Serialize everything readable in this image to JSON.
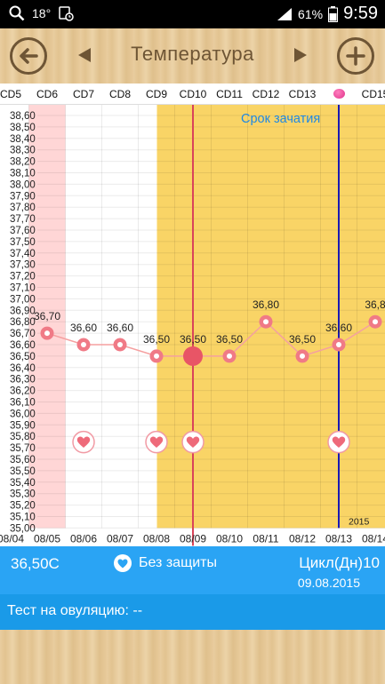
{
  "status_bar": {
    "left_temp": "18°",
    "battery": "61%",
    "time": "9:59"
  },
  "header": {
    "title": "Температура",
    "back_icon": "arrow-left-circle-icon",
    "prev_icon": "triangle-left-icon",
    "next_icon": "triangle-right-icon",
    "add_icon": "plus-circle-icon"
  },
  "cycle_days": [
    "CD5",
    "CD6",
    "CD7",
    "CD8",
    "CD9",
    "CD10",
    "CD11",
    "CD12",
    "CD13",
    "",
    "CD15"
  ],
  "chart_data": {
    "type": "line",
    "x": [
      "08/04",
      "08/05",
      "08/06",
      "08/07",
      "08/08",
      "08/09",
      "08/10",
      "08/11",
      "08/12",
      "08/13",
      "08/14"
    ],
    "series": [
      {
        "values": [
          null,
          36.7,
          36.6,
          36.6,
          36.5,
          36.5,
          36.5,
          36.8,
          36.5,
          36.6,
          36.8
        ],
        "point_labels": [
          "",
          "36,70",
          "36,60",
          "36,60",
          "36,50",
          "36,50",
          "36,50",
          "36,80",
          "36,50",
          "36,60",
          "36,8"
        ]
      }
    ],
    "ylim": [
      35.0,
      38.6
    ],
    "y_ticks": [
      "38,60",
      "38,50",
      "38,40",
      "38,30",
      "38,20",
      "38,10",
      "38,00",
      "37,90",
      "37,80",
      "37,70",
      "37,60",
      "37,50",
      "37,40",
      "37,30",
      "37,20",
      "37,10",
      "37,00",
      "36,90",
      "36,80",
      "36,70",
      "36,60",
      "36,50",
      "36,40",
      "36,30",
      "36,20",
      "36,10",
      "36,00",
      "35,90",
      "35,80",
      "35,70",
      "35,60",
      "35,50",
      "35,40",
      "35,30",
      "35,20",
      "35,10",
      "35,00"
    ],
    "heart_days": [
      "08/06",
      "08/08",
      "08/09",
      "08/13"
    ],
    "pink_range": [
      "08/05",
      "08/05"
    ],
    "fertile_range": [
      "08/08",
      "08/14"
    ],
    "selected_day": "08/09",
    "ovulation_day": "08/13",
    "fertile_label": "Срок зачатия",
    "year_label": "2015",
    "colors": {
      "line": "#f5a0a0",
      "point": "#f07a86",
      "pink_band": "#ffd6d6",
      "fertile_band": "#f9d466",
      "selected_line": "#d9445a",
      "ovulation_line": "#1a1ab5",
      "fertile_label": "#1e88e5"
    }
  },
  "info": {
    "temperature": "36,50C",
    "protection": "Без защиты",
    "cycle": "Цикл(Дн)10",
    "date": "09.08.2015"
  },
  "test": {
    "label": "Тест на овуляцию: --"
  }
}
